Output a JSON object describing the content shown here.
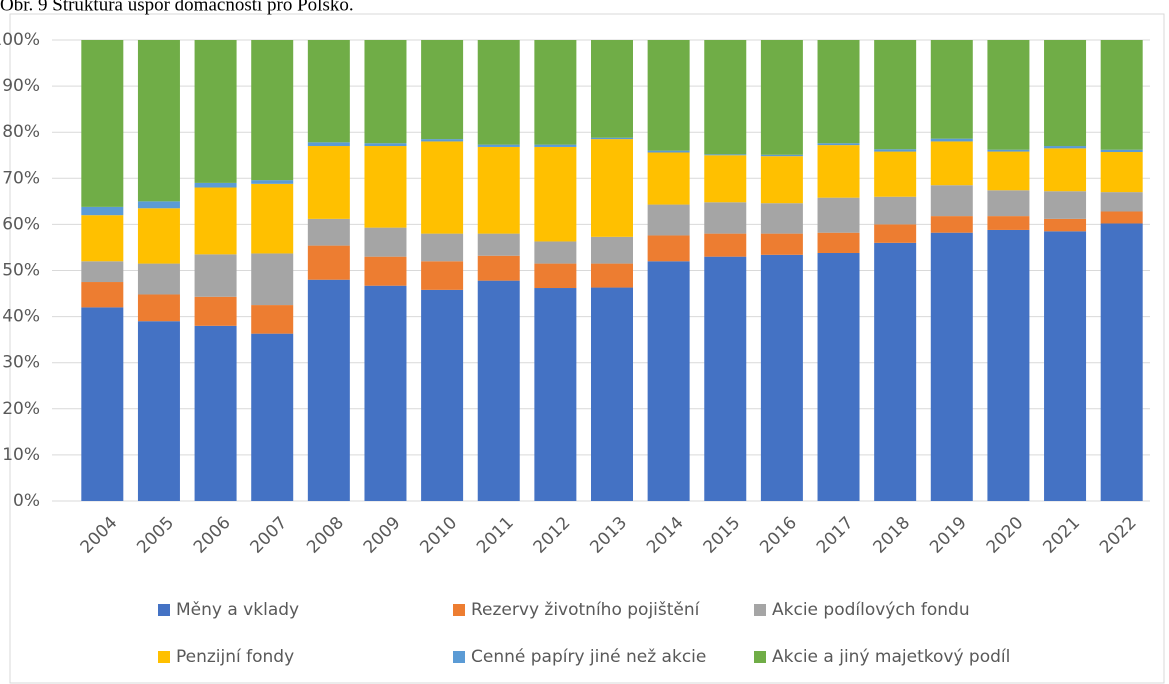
{
  "chart_data": {
    "type": "stacked_bar",
    "title": "Obr. 9 Struktura úspor domácností pro Polsko.",
    "categories": [
      "2004",
      "2005",
      "2006",
      "2007",
      "2008",
      "2009",
      "2010",
      "2011",
      "2012",
      "2013",
      "2014",
      "2015",
      "2016",
      "2017",
      "2018",
      "2019",
      "2020",
      "2021",
      "2022"
    ],
    "series": [
      {
        "name": "Měny a vklady",
        "color": "#4472c4",
        "values": [
          42,
          39,
          38,
          36.3,
          48,
          46.7,
          45.8,
          47.8,
          46.2,
          46.3,
          52,
          53,
          53.4,
          53.8,
          56,
          58.2,
          58.8,
          58.5,
          60.2
        ]
      },
      {
        "name": "Rezervy životního pojištění",
        "color": "#ed7d31",
        "values": [
          5.5,
          5.8,
          6.3,
          6.2,
          7.4,
          6.3,
          6.2,
          5.4,
          5.3,
          5.2,
          5.6,
          5,
          4.6,
          4.4,
          4,
          3.6,
          3,
          2.7,
          2.6
        ]
      },
      {
        "name": "Akcie podílových fondu",
        "color": "#a5a5a5",
        "values": [
          4.5,
          6.7,
          9.2,
          11.2,
          5.8,
          6.3,
          6,
          4.8,
          4.8,
          5.8,
          6.7,
          6.8,
          6.6,
          7.6,
          6,
          6.7,
          5.6,
          6,
          4.2
        ]
      },
      {
        "name": "Penzijní fondy",
        "color": "#ffc000",
        "values": [
          10,
          12,
          14.5,
          15.1,
          15.8,
          17.7,
          20,
          18.8,
          20.5,
          21.2,
          11.3,
          10.2,
          10.2,
          11.4,
          9.8,
          9.5,
          8.4,
          9.3,
          8.7
        ]
      },
      {
        "name": "Cenné papíry jiné než akcie",
        "color": "#5b9bd5",
        "values": [
          1.8,
          1.5,
          1,
          0.8,
          0.8,
          0.6,
          0.5,
          0.5,
          0.5,
          0.3,
          0.4,
          0.2,
          0.3,
          0.4,
          0.5,
          0.6,
          0.4,
          0.5,
          0.5
        ]
      },
      {
        "name": "Akcie a jiný majetkový podíl",
        "color": "#70ad47",
        "values": [
          36.2,
          35,
          31,
          30.4,
          22.2,
          22.4,
          21.5,
          22.7,
          22.7,
          21.2,
          24,
          24.8,
          24.9,
          22.4,
          23.7,
          21.4,
          23.8,
          23,
          23.8
        ]
      }
    ],
    "ylim": [
      0,
      100
    ],
    "yticks": [
      {
        "value": 0,
        "label": "0%"
      },
      {
        "value": 10,
        "label": "10%"
      },
      {
        "value": 20,
        "label": "20%"
      },
      {
        "value": 30,
        "label": "30%"
      },
      {
        "value": 40,
        "label": "40%"
      },
      {
        "value": 50,
        "label": "50%"
      },
      {
        "value": 60,
        "label": "60%"
      },
      {
        "value": 70,
        "label": "70%"
      },
      {
        "value": 80,
        "label": "80%"
      },
      {
        "value": 90,
        "label": "90%"
      },
      {
        "value": 100,
        "label": "100%"
      }
    ],
    "grid": true
  }
}
